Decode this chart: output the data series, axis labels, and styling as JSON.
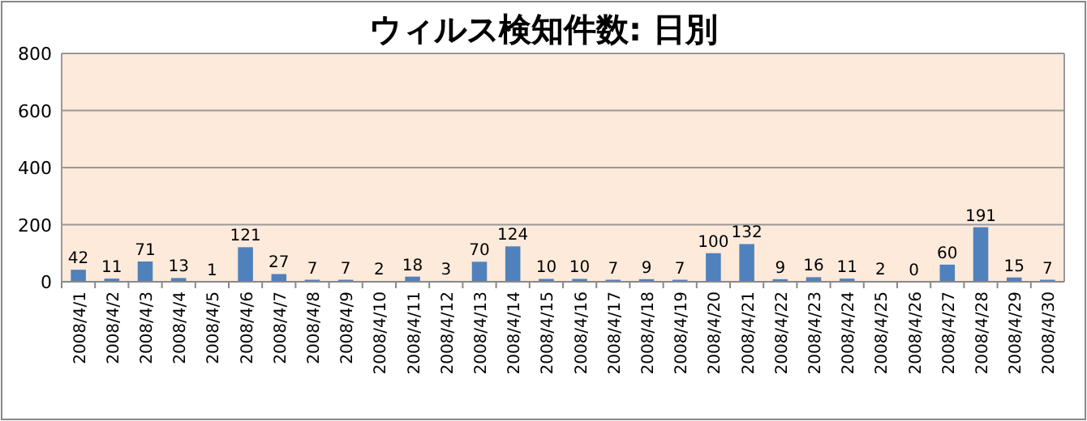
{
  "chart_data": {
    "type": "bar",
    "title": "ウィルス検知件数: 日別",
    "categories": [
      "2008/4/1",
      "2008/4/2",
      "2008/4/3",
      "2008/4/4",
      "2008/4/5",
      "2008/4/6",
      "2008/4/7",
      "2008/4/8",
      "2008/4/9",
      "2008/4/10",
      "2008/4/11",
      "2008/4/12",
      "2008/4/13",
      "2008/4/14",
      "2008/4/15",
      "2008/4/16",
      "2008/4/17",
      "2008/4/18",
      "2008/4/19",
      "2008/4/20",
      "2008/4/21",
      "2008/4/22",
      "2008/4/23",
      "2008/4/24",
      "2008/4/25",
      "2008/4/26",
      "2008/4/27",
      "2008/4/28",
      "2008/4/29",
      "2008/4/30"
    ],
    "values": [
      42,
      11,
      71,
      13,
      1,
      121,
      27,
      7,
      7,
      2,
      18,
      3,
      70,
      124,
      10,
      10,
      7,
      9,
      7,
      100,
      132,
      9,
      16,
      11,
      2,
      0,
      60,
      191,
      15,
      7
    ],
    "color": "#4f81bd",
    "ylim": [
      0,
      800
    ],
    "yticks": [
      0,
      200,
      400,
      600,
      800
    ],
    "grid": "y",
    "data_labels": true
  }
}
